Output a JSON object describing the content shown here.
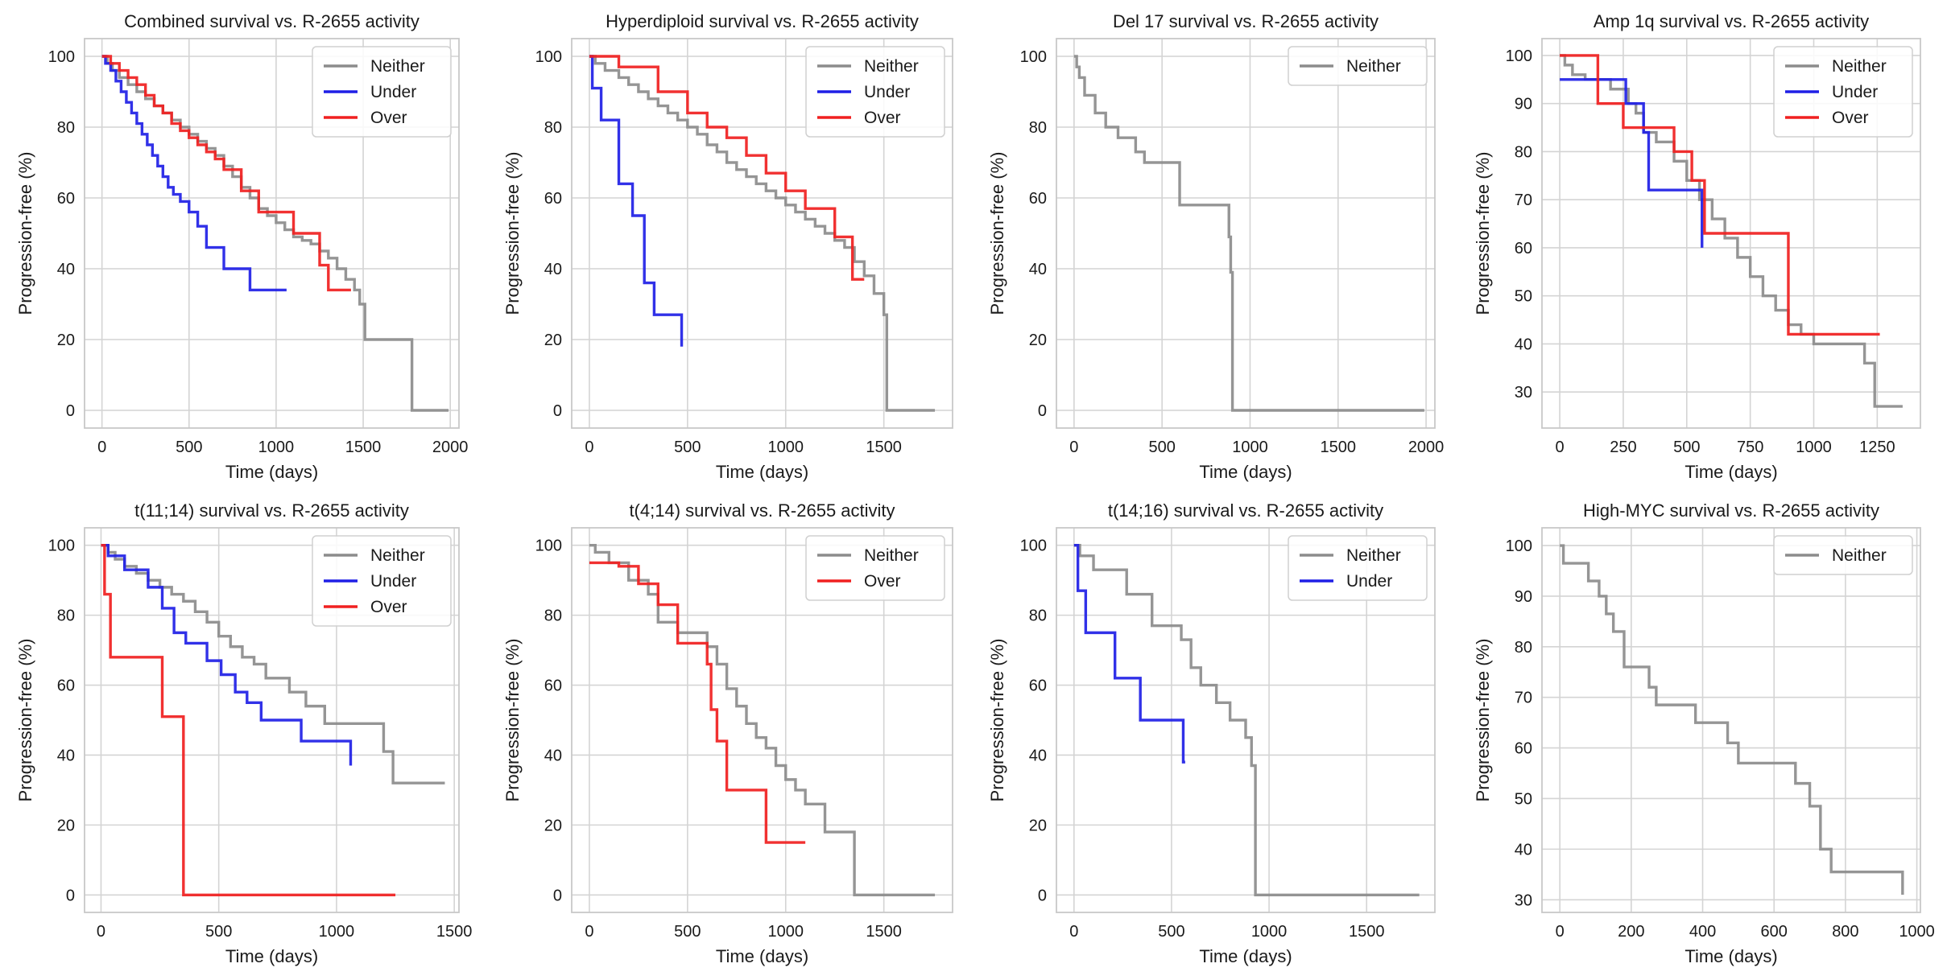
{
  "colors": {
    "Neither": "#8c8c8c",
    "Under": "#1f1fe6",
    "Over": "#f02020",
    "grid": "#d4d4d4",
    "spine": "#c8c8c8"
  },
  "chart_data": [
    {
      "type": "line",
      "step": true,
      "title": "Combined survival vs. R-2655 activity",
      "xlabel": "Time (days)",
      "ylabel": "Progression-free (%)",
      "xlim": [
        -100,
        2050
      ],
      "ylim": [
        -5,
        105
      ],
      "xticks": [
        0,
        500,
        1000,
        1500,
        2000
      ],
      "yticks": [
        0,
        20,
        40,
        60,
        80,
        100
      ],
      "legend": "top-right",
      "series": [
        {
          "name": "Neither",
          "x": [
            0,
            30,
            60,
            100,
            150,
            200,
            250,
            300,
            350,
            400,
            450,
            500,
            550,
            600,
            650,
            700,
            750,
            800,
            850,
            900,
            950,
            1000,
            1050,
            1100,
            1150,
            1200,
            1250,
            1300,
            1350,
            1400,
            1450,
            1480,
            1510,
            1760,
            1780,
            1990
          ],
          "y": [
            100,
            98,
            96,
            94,
            92,
            90,
            88,
            86,
            84,
            82,
            80,
            78,
            76,
            74,
            72,
            69,
            66,
            63,
            60,
            57,
            55,
            53,
            51,
            49,
            48,
            47,
            45,
            43,
            40,
            37,
            34,
            30,
            20,
            20,
            0,
            0
          ]
        },
        {
          "name": "Under",
          "x": [
            0,
            20,
            50,
            80,
            110,
            140,
            170,
            200,
            230,
            260,
            290,
            320,
            350,
            380,
            410,
            450,
            500,
            550,
            600,
            700,
            850,
            1060
          ],
          "y": [
            100,
            98,
            96,
            93,
            90,
            87,
            84,
            81,
            78,
            75,
            72,
            69,
            66,
            63,
            61,
            59,
            56,
            52,
            46,
            40,
            34,
            34
          ]
        },
        {
          "name": "Over",
          "x": [
            0,
            50,
            100,
            150,
            200,
            250,
            300,
            350,
            400,
            450,
            500,
            550,
            600,
            650,
            700,
            800,
            900,
            1000,
            1100,
            1250,
            1300,
            1430
          ],
          "y": [
            100,
            98,
            96,
            94,
            92,
            89,
            86,
            84,
            81,
            79,
            77,
            75,
            73,
            71,
            68,
            62,
            56,
            56,
            50,
            41,
            34,
            34
          ]
        }
      ]
    },
    {
      "type": "line",
      "step": true,
      "title": "Hyperdiploid survival vs. R-2655 activity",
      "xlabel": "Time (days)",
      "ylabel": "Progression-free (%)",
      "xlim": [
        -90,
        1850
      ],
      "ylim": [
        -5,
        105
      ],
      "xticks": [
        0,
        500,
        1000,
        1500
      ],
      "yticks": [
        0,
        20,
        40,
        60,
        80,
        100
      ],
      "legend": "top-right",
      "series": [
        {
          "name": "Neither",
          "x": [
            0,
            30,
            80,
            150,
            200,
            250,
            300,
            350,
            400,
            450,
            500,
            550,
            600,
            650,
            700,
            750,
            800,
            850,
            900,
            950,
            1000,
            1050,
            1100,
            1150,
            1200,
            1250,
            1300,
            1350,
            1400,
            1450,
            1500,
            1515,
            1760
          ],
          "y": [
            100,
            98,
            96,
            94,
            92,
            90,
            88,
            86,
            84,
            82,
            80,
            78,
            75,
            73,
            70,
            68,
            66,
            64,
            62,
            60,
            58,
            56,
            54,
            52,
            50,
            48,
            46,
            42,
            38,
            33,
            27,
            0,
            0
          ]
        },
        {
          "name": "Under",
          "x": [
            0,
            15,
            60,
            150,
            220,
            280,
            330,
            470
          ],
          "y": [
            100,
            91,
            82,
            64,
            55,
            36,
            27,
            18
          ]
        },
        {
          "name": "Over",
          "x": [
            0,
            150,
            350,
            500,
            600,
            700,
            800,
            900,
            1000,
            1100,
            1250,
            1340,
            1400
          ],
          "y": [
            100,
            97,
            90,
            84,
            80,
            77,
            72,
            67,
            62,
            57,
            49,
            37,
            37
          ]
        }
      ]
    },
    {
      "type": "line",
      "step": true,
      "title": "Del 17 survival vs. R-2655 activity",
      "xlabel": "Time (days)",
      "ylabel": "Progression-free (%)",
      "xlim": [
        -100,
        2050
      ],
      "ylim": [
        -5,
        105
      ],
      "xticks": [
        0,
        500,
        1000,
        1500,
        2000
      ],
      "yticks": [
        0,
        20,
        40,
        60,
        80,
        100
      ],
      "legend": "top-right",
      "series": [
        {
          "name": "Neither",
          "x": [
            0,
            15,
            30,
            60,
            120,
            180,
            250,
            350,
            400,
            600,
            880,
            890,
            900,
            1990
          ],
          "y": [
            100,
            97,
            94,
            89,
            84,
            80,
            77,
            73,
            70,
            58,
            49,
            39,
            0,
            0
          ]
        }
      ]
    },
    {
      "type": "line",
      "step": true,
      "title": "Amp 1q survival vs. R-2655 activity",
      "xlabel": "Time (days)",
      "ylabel": "Progression-free (%)",
      "xlim": [
        -70,
        1420
      ],
      "ylim": [
        22.5,
        103.5
      ],
      "xticks": [
        0,
        250,
        500,
        750,
        1000,
        1250
      ],
      "yticks": [
        30,
        40,
        50,
        60,
        70,
        80,
        90,
        100
      ],
      "legend": "top-right",
      "series": [
        {
          "name": "Neither",
          "x": [
            0,
            20,
            50,
            100,
            200,
            270,
            300,
            330,
            380,
            450,
            500,
            550,
            600,
            650,
            700,
            750,
            800,
            850,
            900,
            950,
            1000,
            1150,
            1200,
            1240,
            1350
          ],
          "y": [
            100,
            98,
            96,
            95,
            93,
            90,
            88,
            84,
            82,
            78,
            74,
            70,
            66,
            62,
            58,
            54,
            50,
            47,
            44,
            42,
            40,
            40,
            36,
            27,
            27
          ]
        },
        {
          "name": "Under",
          "x": [
            0,
            220,
            260,
            280,
            330,
            350,
            560
          ],
          "y": [
            95,
            95,
            90,
            90,
            84,
            72,
            60
          ]
        },
        {
          "name": "Over",
          "x": [
            0,
            150,
            250,
            400,
            450,
            520,
            570,
            890,
            900,
            1260
          ],
          "y": [
            100,
            90,
            85,
            85,
            80,
            74,
            63,
            63,
            42,
            42
          ]
        }
      ]
    },
    {
      "type": "line",
      "step": true,
      "title": "t(11;14) survival vs. R-2655 activity",
      "xlabel": "Time (days)",
      "ylabel": "Progression-free (%)",
      "xlim": [
        -70,
        1520
      ],
      "ylim": [
        -5,
        105
      ],
      "xticks": [
        0,
        500,
        1000,
        1500
      ],
      "yticks": [
        0,
        20,
        40,
        60,
        80,
        100
      ],
      "legend": "top-right",
      "series": [
        {
          "name": "Neither",
          "x": [
            0,
            30,
            60,
            100,
            150,
            200,
            250,
            300,
            350,
            400,
            450,
            500,
            550,
            600,
            650,
            700,
            800,
            870,
            950,
            1100,
            1200,
            1240,
            1460
          ],
          "y": [
            100,
            98,
            96,
            94,
            92,
            90,
            88,
            86,
            84,
            81,
            78,
            74,
            71,
            68,
            66,
            62,
            58,
            54,
            49,
            49,
            41,
            32,
            32
          ]
        },
        {
          "name": "Under",
          "x": [
            0,
            30,
            100,
            200,
            260,
            310,
            360,
            450,
            510,
            570,
            620,
            680,
            850,
            1060
          ],
          "y": [
            100,
            97,
            93,
            88,
            82,
            75,
            72,
            67,
            63,
            58,
            55,
            50,
            44,
            37
          ]
        },
        {
          "name": "Over",
          "x": [
            0,
            15,
            40,
            260,
            350,
            1250
          ],
          "y": [
            100,
            86,
            68,
            51,
            0,
            0
          ]
        }
      ]
    },
    {
      "type": "line",
      "step": true,
      "title": "t(4;14) survival vs. R-2655 activity",
      "xlabel": "Time (days)",
      "ylabel": "Progression-free (%)",
      "xlim": [
        -90,
        1850
      ],
      "ylim": [
        -5,
        105
      ],
      "xticks": [
        0,
        500,
        1000,
        1500
      ],
      "yticks": [
        0,
        20,
        40,
        60,
        80,
        100
      ],
      "legend": "top-right",
      "series": [
        {
          "name": "Neither",
          "x": [
            0,
            30,
            100,
            200,
            300,
            350,
            450,
            600,
            650,
            700,
            750,
            800,
            850,
            900,
            950,
            1000,
            1050,
            1100,
            1200,
            1350,
            1760
          ],
          "y": [
            100,
            98,
            95,
            90,
            86,
            78,
            75,
            71,
            66,
            59,
            54,
            49,
            45,
            42,
            37,
            33,
            30,
            26,
            18,
            0,
            0
          ]
        },
        {
          "name": "Over",
          "x": [
            0,
            150,
            250,
            350,
            450,
            600,
            620,
            650,
            700,
            900,
            1100
          ],
          "y": [
            95,
            94,
            89,
            83,
            72,
            66,
            53,
            44,
            30,
            15,
            15
          ]
        }
      ]
    },
    {
      "type": "line",
      "step": true,
      "title": "t(14;16) survival vs. R-2655 activity",
      "xlabel": "Time (days)",
      "ylabel": "Progression-free (%)",
      "xlim": [
        -90,
        1850
      ],
      "ylim": [
        -5,
        105
      ],
      "xticks": [
        0,
        500,
        1000,
        1500
      ],
      "yticks": [
        0,
        20,
        40,
        60,
        80,
        100
      ],
      "legend": "top-right",
      "series": [
        {
          "name": "Neither",
          "x": [
            0,
            30,
            100,
            270,
            400,
            550,
            600,
            650,
            730,
            800,
            880,
            910,
            930,
            1770
          ],
          "y": [
            100,
            97,
            93,
            86,
            77,
            73,
            65,
            60,
            55,
            50,
            45,
            37,
            0,
            0
          ]
        },
        {
          "name": "Under",
          "x": [
            0,
            20,
            60,
            210,
            340,
            560,
            570
          ],
          "y": [
            100,
            87,
            75,
            62,
            50,
            38,
            38
          ]
        }
      ]
    },
    {
      "type": "line",
      "step": true,
      "title": "High-MYC survival vs. R-2655 activity",
      "xlabel": "Time (days)",
      "ylabel": "Progression-free (%)",
      "xlim": [
        -50,
        1010
      ],
      "ylim": [
        27.5,
        103.5
      ],
      "xticks": [
        0,
        200,
        400,
        600,
        800,
        1000
      ],
      "yticks": [
        30,
        40,
        50,
        60,
        70,
        80,
        90,
        100
      ],
      "legend": "top-right",
      "series": [
        {
          "name": "Neither",
          "x": [
            0,
            10,
            80,
            110,
            130,
            150,
            180,
            250,
            270,
            380,
            470,
            500,
            660,
            700,
            730,
            760,
            960
          ],
          "y": [
            100,
            96.5,
            93,
            90,
            86.5,
            83,
            76,
            72,
            68.5,
            65,
            61,
            57,
            53,
            48.5,
            40,
            35.5,
            31
          ]
        }
      ]
    }
  ]
}
